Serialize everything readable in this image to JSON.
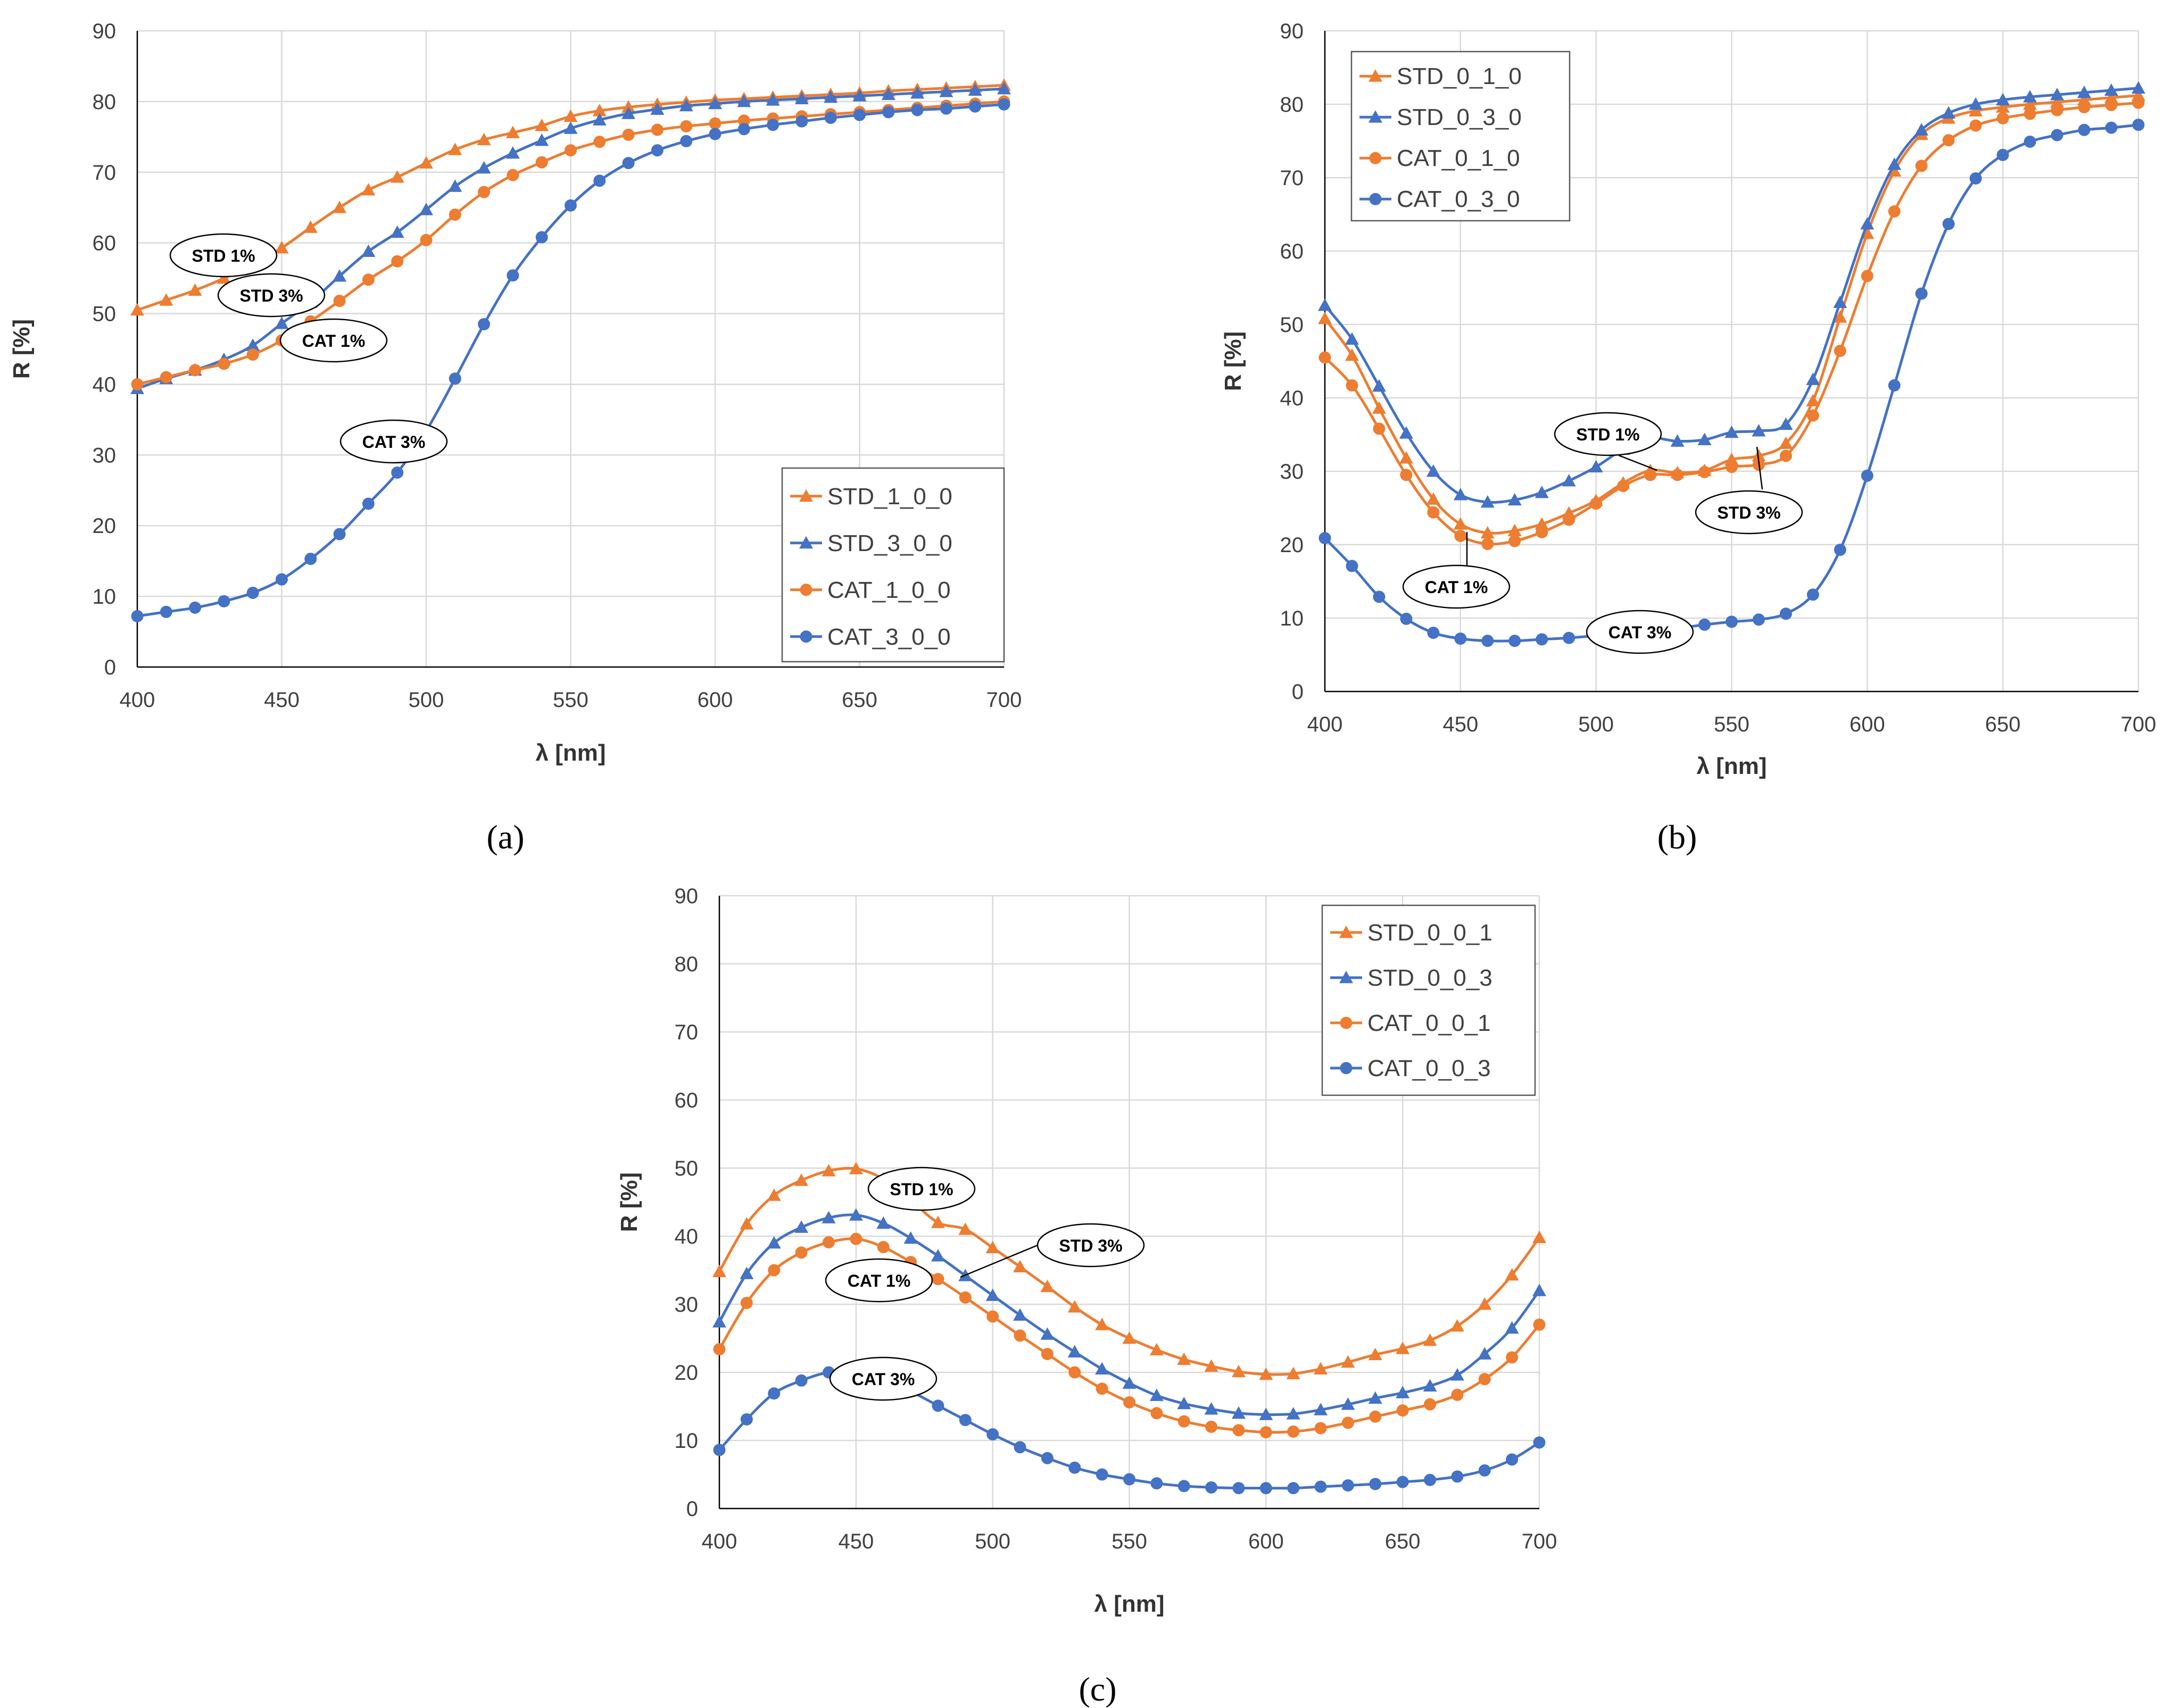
{
  "colors": {
    "orange": "#ED7D31",
    "blue": "#4472C4",
    "grid": "#D9D9D9",
    "axis": "#000000"
  },
  "chart_data": [
    {
      "caption": "(a)",
      "type": "line",
      "title": "",
      "xlabel": "λ [nm]",
      "ylabel": "R [%]",
      "xlim": [
        400,
        700
      ],
      "ylim": [
        0,
        90
      ],
      "x_ticks": [
        "400",
        "450",
        "500",
        "550",
        "600",
        "650",
        "700"
      ],
      "y_ticks": [
        "0",
        "10",
        "20",
        "30",
        "40",
        "50",
        "60",
        "70",
        "80",
        "90"
      ],
      "grid": true,
      "legend_position": "bottom-right",
      "x": [
        400,
        410,
        420,
        430,
        440,
        450,
        460,
        470,
        480,
        490,
        500,
        510,
        520,
        530,
        540,
        550,
        560,
        570,
        580,
        590,
        600,
        610,
        620,
        630,
        640,
        650,
        660,
        670,
        680,
        690,
        700
      ],
      "series": [
        {
          "name": "STD_1_0_0",
          "color": "orange",
          "marker": "triangle",
          "values": [
            50.5,
            51.9,
            53.3,
            55.0,
            57.0,
            59.3,
            62.2,
            65.0,
            67.5,
            69.3,
            71.3,
            73.2,
            74.6,
            75.6,
            76.6,
            77.9,
            78.7,
            79.2,
            79.6,
            79.9,
            80.2,
            80.4,
            80.6,
            80.8,
            81.0,
            81.2,
            81.5,
            81.7,
            81.9,
            82.1,
            82.3
          ]
        },
        {
          "name": "STD_3_0_0",
          "color": "blue",
          "marker": "triangle",
          "values": [
            39.4,
            40.8,
            42.0,
            43.5,
            45.5,
            48.6,
            51.6,
            55.3,
            58.8,
            61.5,
            64.7,
            68.0,
            70.6,
            72.7,
            74.5,
            76.2,
            77.4,
            78.3,
            78.9,
            79.4,
            79.7,
            80.0,
            80.2,
            80.4,
            80.6,
            80.8,
            81.0,
            81.2,
            81.4,
            81.6,
            81.8
          ]
        },
        {
          "name": "CAT_1_0_0",
          "color": "orange",
          "marker": "circle",
          "values": [
            40.0,
            41.0,
            42.0,
            42.9,
            44.2,
            46.2,
            48.9,
            51.8,
            54.8,
            57.4,
            60.4,
            64.0,
            67.2,
            69.6,
            71.4,
            73.1,
            74.3,
            75.3,
            76.0,
            76.5,
            76.9,
            77.3,
            77.6,
            77.9,
            78.2,
            78.5,
            78.8,
            79.1,
            79.4,
            79.7,
            80.0
          ]
        },
        {
          "name": "CAT_3_0_0",
          "color": "blue",
          "marker": "circle",
          "values": [
            7.2,
            7.8,
            8.4,
            9.3,
            10.5,
            12.4,
            15.3,
            18.8,
            23.1,
            27.5,
            33.4,
            40.8,
            48.5,
            55.4,
            60.8,
            65.3,
            68.8,
            71.3,
            73.1,
            74.4,
            75.4,
            76.1,
            76.7,
            77.2,
            77.7,
            78.1,
            78.5,
            78.8,
            79.0,
            79.3,
            79.6
          ]
        }
      ],
      "annotations": [
        {
          "text": "STD 1%"
        },
        {
          "text": "STD 3%"
        },
        {
          "text": "CAT 1%"
        },
        {
          "text": "CAT 3%"
        }
      ]
    },
    {
      "caption": "(b)",
      "type": "line",
      "title": "",
      "xlabel": "λ [nm]",
      "ylabel": "R [%]",
      "xlim": [
        400,
        700
      ],
      "ylim": [
        0,
        90
      ],
      "x_ticks": [
        "400",
        "450",
        "500",
        "550",
        "600",
        "650",
        "700"
      ],
      "y_ticks": [
        "0",
        "10",
        "20",
        "30",
        "40",
        "50",
        "60",
        "70",
        "80",
        "90"
      ],
      "grid": true,
      "legend_position": "top-left",
      "x": [
        400,
        410,
        420,
        430,
        440,
        450,
        460,
        470,
        480,
        490,
        500,
        510,
        520,
        530,
        540,
        550,
        560,
        570,
        580,
        590,
        600,
        610,
        620,
        630,
        640,
        650,
        660,
        670,
        680,
        690,
        700
      ],
      "series": [
        {
          "name": "STD_0_1_0",
          "color": "orange",
          "marker": "triangle",
          "values": [
            50.8,
            45.8,
            38.6,
            31.8,
            26.2,
            22.8,
            21.6,
            21.9,
            22.8,
            24.3,
            26.0,
            28.4,
            30.1,
            29.8,
            30.1,
            31.6,
            32.1,
            33.8,
            39.6,
            51.0,
            62.4,
            70.9,
            75.9,
            78.1,
            79.1,
            79.6,
            80.0,
            80.3,
            80.6,
            80.9,
            81.2
          ]
        },
        {
          "name": "STD_0_3_0",
          "color": "blue",
          "marker": "triangle",
          "values": [
            52.6,
            48.0,
            41.6,
            35.2,
            30.0,
            26.8,
            25.8,
            26.1,
            27.1,
            28.7,
            30.6,
            33.0,
            34.5,
            34.1,
            34.3,
            35.3,
            35.5,
            36.4,
            42.5,
            53.0,
            63.7,
            71.8,
            76.5,
            78.8,
            80.0,
            80.6,
            81.0,
            81.3,
            81.6,
            81.9,
            82.2
          ]
        },
        {
          "name": "CAT_0_1_0",
          "color": "orange",
          "marker": "circle",
          "values": [
            45.5,
            41.7,
            35.8,
            29.5,
            24.4,
            21.2,
            20.1,
            20.5,
            21.7,
            23.4,
            25.6,
            28.0,
            29.5,
            29.5,
            29.9,
            30.6,
            30.9,
            32.1,
            37.6,
            46.4,
            56.6,
            65.4,
            71.6,
            75.1,
            77.1,
            78.1,
            78.7,
            79.2,
            79.6,
            79.9,
            80.2
          ]
        },
        {
          "name": "CAT_0_3_0",
          "color": "blue",
          "marker": "circle",
          "values": [
            20.9,
            17.1,
            12.9,
            9.9,
            8.0,
            7.2,
            6.9,
            6.9,
            7.1,
            7.3,
            7.6,
            7.9,
            8.2,
            8.6,
            9.1,
            9.5,
            9.8,
            10.6,
            13.2,
            19.3,
            29.4,
            41.7,
            54.2,
            63.7,
            69.9,
            73.1,
            74.9,
            75.8,
            76.5,
            76.8,
            77.2
          ]
        }
      ],
      "annotations": [
        {
          "text": "STD 1%"
        },
        {
          "text": "STD 3%"
        },
        {
          "text": "CAT 1%"
        },
        {
          "text": "CAT 3%"
        }
      ]
    },
    {
      "caption": "(c)",
      "type": "line",
      "title": "",
      "xlabel": "λ [nm]",
      "ylabel": "R [%]",
      "xlim": [
        400,
        700
      ],
      "ylim": [
        0,
        90
      ],
      "x_ticks": [
        "400",
        "450",
        "500",
        "550",
        "600",
        "650",
        "700"
      ],
      "y_ticks": [
        "0",
        "10",
        "20",
        "30",
        "40",
        "50",
        "60",
        "70",
        "80",
        "90"
      ],
      "grid": true,
      "legend_position": "top-right",
      "x": [
        400,
        410,
        420,
        430,
        440,
        450,
        460,
        470,
        480,
        490,
        500,
        510,
        520,
        530,
        540,
        550,
        560,
        570,
        580,
        590,
        600,
        610,
        620,
        630,
        640,
        650,
        660,
        670,
        680,
        690,
        700
      ],
      "series": [
        {
          "name": "STD_0_0_1",
          "color": "orange",
          "marker": "triangle",
          "values": [
            34.8,
            41.8,
            46.0,
            48.2,
            49.6,
            49.9,
            48.4,
            45.3,
            42.0,
            41.0,
            38.3,
            35.5,
            32.6,
            29.6,
            27.0,
            25.0,
            23.3,
            21.9,
            20.9,
            20.1,
            19.7,
            19.8,
            20.5,
            21.5,
            22.6,
            23.5,
            24.7,
            26.8,
            30.0,
            34.3,
            39.8
          ]
        },
        {
          "name": "STD_0_0_3",
          "color": "blue",
          "marker": "triangle",
          "values": [
            27.4,
            34.5,
            39.0,
            41.3,
            42.7,
            43.1,
            41.9,
            39.7,
            37.1,
            34.2,
            31.3,
            28.4,
            25.6,
            23.0,
            20.5,
            18.4,
            16.6,
            15.4,
            14.6,
            14.0,
            13.8,
            13.9,
            14.5,
            15.3,
            16.2,
            17.0,
            18.0,
            19.6,
            22.7,
            26.5,
            32.0
          ]
        },
        {
          "name": "CAT_0_0_1",
          "color": "orange",
          "marker": "circle",
          "values": [
            23.4,
            30.2,
            35.0,
            37.6,
            39.1,
            39.6,
            38.4,
            36.2,
            33.7,
            31.0,
            28.2,
            25.4,
            22.7,
            20.0,
            17.6,
            15.6,
            14.0,
            12.8,
            12.0,
            11.5,
            11.2,
            11.3,
            11.8,
            12.6,
            13.5,
            14.4,
            15.3,
            16.7,
            19.0,
            22.2,
            27.0
          ]
        },
        {
          "name": "CAT_0_0_3",
          "color": "blue",
          "marker": "circle",
          "values": [
            8.6,
            13.1,
            16.9,
            18.8,
            20.0,
            20.0,
            18.8,
            17.2,
            15.1,
            13.0,
            10.9,
            9.0,
            7.4,
            6.0,
            5.0,
            4.3,
            3.7,
            3.3,
            3.1,
            3.0,
            3.0,
            3.0,
            3.2,
            3.4,
            3.6,
            3.9,
            4.2,
            4.7,
            5.6,
            7.2,
            9.7
          ]
        }
      ],
      "annotations": [
        {
          "text": "STD 1%"
        },
        {
          "text": "STD 3%"
        },
        {
          "text": "CAT 1%"
        },
        {
          "text": "CAT 3%"
        }
      ]
    }
  ]
}
